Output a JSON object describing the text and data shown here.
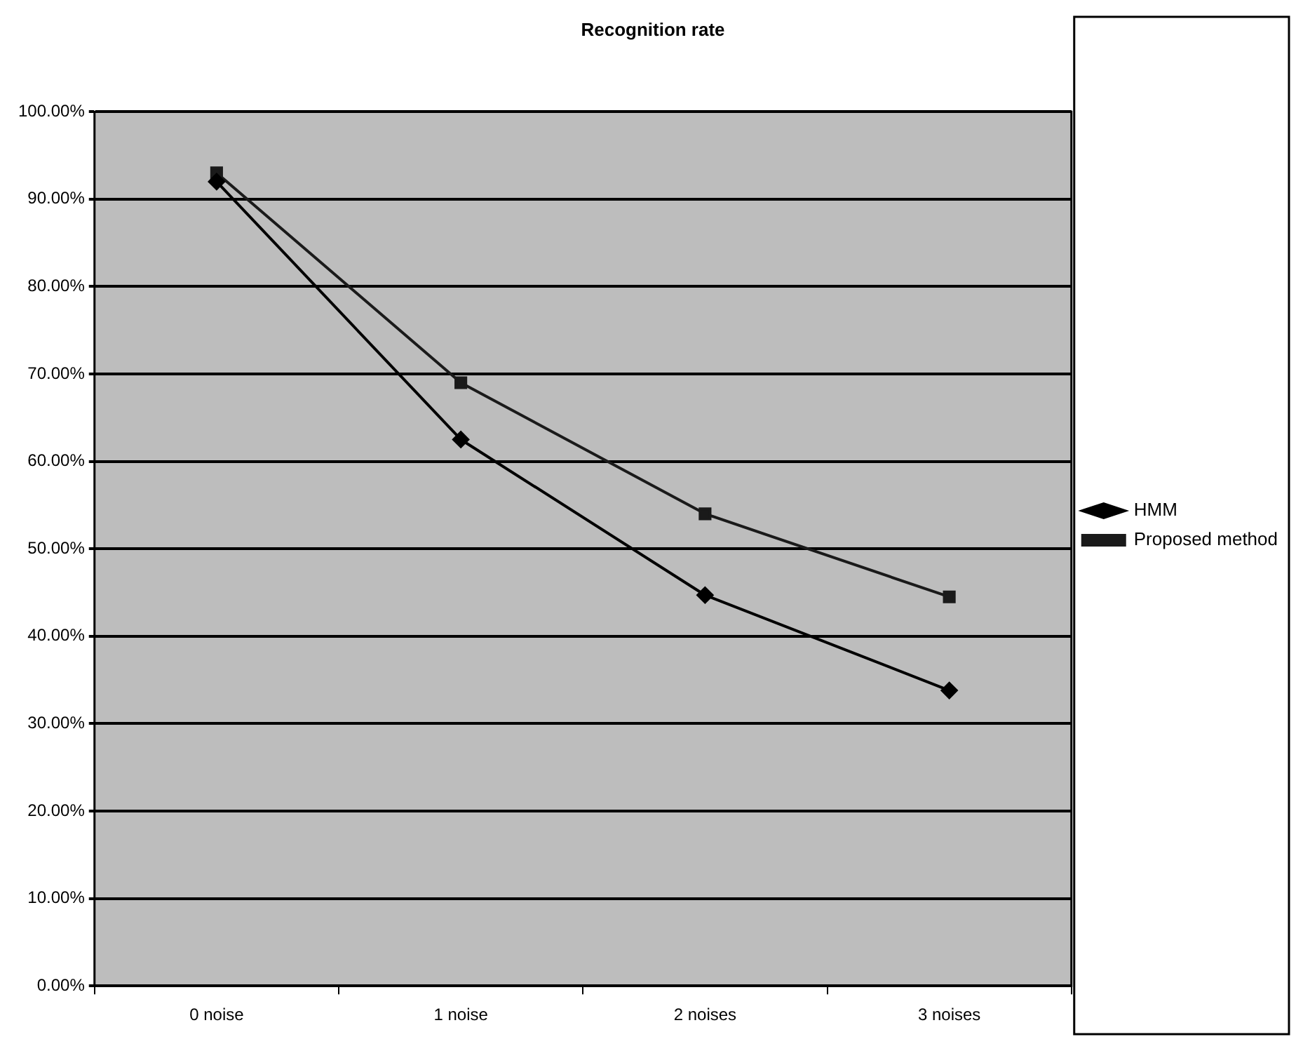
{
  "chart_data": {
    "type": "line",
    "title": "Recognition rate",
    "categories": [
      "0 noise",
      "1 noise",
      "2 noises",
      "3 noises"
    ],
    "series": [
      {
        "name": "HMM",
        "color": "#000000",
        "marker": "diamond",
        "values": [
          92,
          62.5,
          44.7,
          33.8
        ]
      },
      {
        "name": "Proposed method",
        "color": "#1a1a1a",
        "marker": "square",
        "values": [
          93,
          69,
          54,
          44.5
        ]
      }
    ],
    "ylim": [
      0,
      100
    ],
    "yticks": [
      {
        "value": 0,
        "label": "0.00%"
      },
      {
        "value": 10,
        "label": "10.00%"
      },
      {
        "value": 20,
        "label": "20.00%"
      },
      {
        "value": 30,
        "label": "30.00%"
      },
      {
        "value": 40,
        "label": "40.00%"
      },
      {
        "value": 50,
        "label": "50.00%"
      },
      {
        "value": 60,
        "label": "60.00%"
      },
      {
        "value": 70,
        "label": "70.00%"
      },
      {
        "value": 80,
        "label": "80.00%"
      },
      {
        "value": 90,
        "label": "90.00%"
      },
      {
        "value": 100,
        "label": "100.00%"
      }
    ],
    "grid": "y",
    "legend": "right",
    "line_style": "solid"
  }
}
